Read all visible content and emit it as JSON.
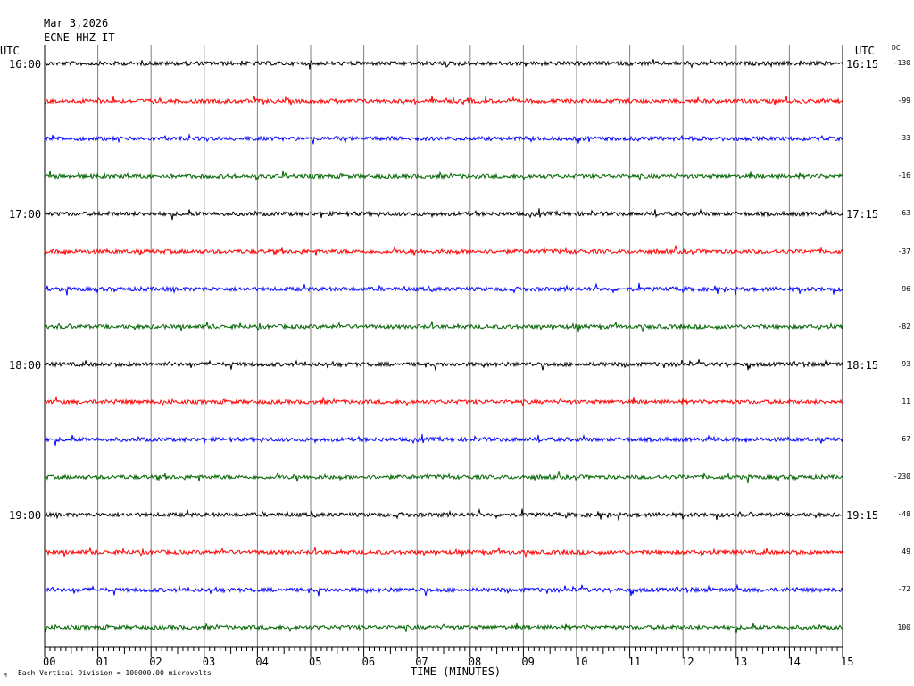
{
  "header": {
    "date": "Mar 3,2026",
    "station": "ECNE HHZ IT"
  },
  "axis": {
    "left_title": "UTC",
    "right_title": "UTC",
    "dc_title": "DC",
    "x_title": "TIME (MINUTES)",
    "footer_mark": "M",
    "footer_note": "Each Vertical Division = 100000.00 microvolts"
  },
  "colors": {
    "cycle": [
      "#000000",
      "#ff0000",
      "#0000ff",
      "#006400"
    ],
    "grid": "#808080",
    "background": "#ffffff"
  },
  "chart_data": {
    "type": "line",
    "xlim": [
      0,
      15
    ],
    "x_ticks": [
      "00",
      "01",
      "02",
      "03",
      "04",
      "05",
      "06",
      "07",
      "08",
      "09",
      "10",
      "11",
      "12",
      "13",
      "14",
      "15"
    ],
    "rows": [
      {
        "left": "16:00",
        "right": "16:15",
        "dc": "-130",
        "color": "#000000"
      },
      {
        "left": "",
        "right": "",
        "dc": "-99",
        "color": "#ff0000"
      },
      {
        "left": "",
        "right": "",
        "dc": "-33",
        "color": "#0000ff"
      },
      {
        "left": "",
        "right": "",
        "dc": "-16",
        "color": "#006400"
      },
      {
        "left": "17:00",
        "right": "17:15",
        "dc": "-63",
        "color": "#000000"
      },
      {
        "left": "",
        "right": "",
        "dc": "-37",
        "color": "#ff0000"
      },
      {
        "left": "",
        "right": "",
        "dc": "96",
        "color": "#0000ff"
      },
      {
        "left": "",
        "right": "",
        "dc": "-82",
        "color": "#006400"
      },
      {
        "left": "18:00",
        "right": "18:15",
        "dc": "93",
        "color": "#000000"
      },
      {
        "left": "",
        "right": "",
        "dc": "11",
        "color": "#ff0000"
      },
      {
        "left": "",
        "right": "",
        "dc": "67",
        "color": "#0000ff"
      },
      {
        "left": "",
        "right": "",
        "dc": "-230",
        "color": "#006400"
      },
      {
        "left": "19:00",
        "right": "19:15",
        "dc": "-48",
        "color": "#000000"
      },
      {
        "left": "",
        "right": "",
        "dc": "49",
        "color": "#ff0000"
      },
      {
        "left": "",
        "right": "",
        "dc": "-72",
        "color": "#0000ff"
      },
      {
        "left": "",
        "right": "",
        "dc": "100",
        "color": "#006400"
      }
    ]
  }
}
